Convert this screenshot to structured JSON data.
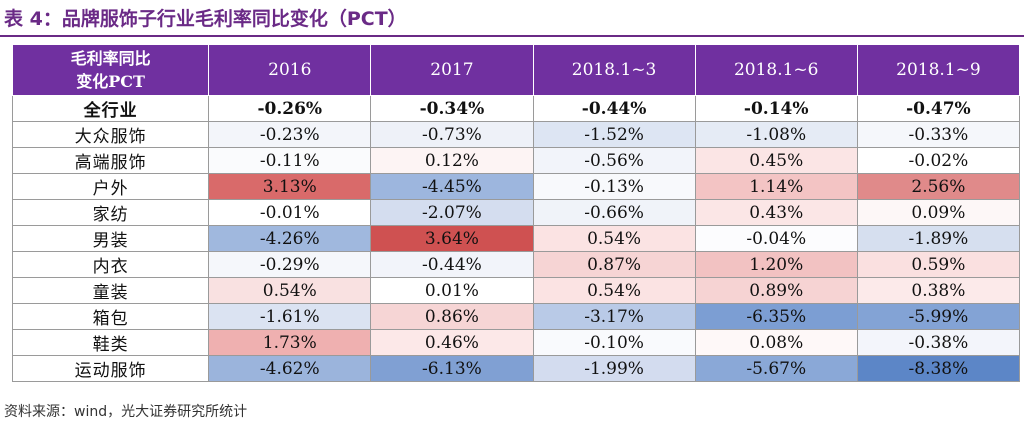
{
  "title": "表 4：品牌服饰子行业毛利率同比变化（PCT）",
  "header": {
    "corner_line1": "毛利率同比",
    "corner_line2": "变化PCT",
    "columns": [
      "2016",
      "2017",
      "2018.1~3",
      "2018.1~6",
      "2018.1~9"
    ]
  },
  "rows": [
    {
      "label": "全行业",
      "values": [
        "-0.26%",
        "-0.34%",
        "-0.44%",
        "-0.14%",
        "-0.47%"
      ],
      "colors": [
        "#ffffff",
        "#ffffff",
        "#ffffff",
        "#ffffff",
        "#ffffff"
      ]
    },
    {
      "label": "大众服饰",
      "values": [
        "-0.23%",
        "-0.73%",
        "-1.52%",
        "-1.08%",
        "-0.33%"
      ],
      "colors": [
        "#f3f5fa",
        "#eef1f8",
        "#dde5f3",
        "#e5ebf5",
        "#f5f7fb"
      ]
    },
    {
      "label": "高端服饰",
      "values": [
        "-0.11%",
        "0.12%",
        "-0.56%",
        "0.45%",
        "-0.02%"
      ],
      "colors": [
        "#fafbfd",
        "#fdf4f4",
        "#f2f4fa",
        "#fbe5e5",
        "#ffffff"
      ]
    },
    {
      "label": "户外",
      "values": [
        "3.13%",
        "-4.45%",
        "-0.13%",
        "1.14%",
        "2.56%"
      ],
      "colors": [
        "#d96a6a",
        "#9db6de",
        "#f8f9fc",
        "#f3c4c4",
        "#e08a8a"
      ]
    },
    {
      "label": "家纺",
      "values": [
        "-0.01%",
        "-2.07%",
        "-0.66%",
        "0.43%",
        "0.09%"
      ],
      "colors": [
        "#ffffff",
        "#d4ddef",
        "#f0f3f9",
        "#fbe6e6",
        "#fdf7f7"
      ]
    },
    {
      "label": "男装",
      "values": [
        "-4.26%",
        "3.64%",
        "0.54%",
        "-0.04%",
        "-1.89%"
      ],
      "colors": [
        "#a0b8de",
        "#cf5151",
        "#fbe3e3",
        "#fcfcfe",
        "#d6dfef"
      ]
    },
    {
      "label": "内衣",
      "values": [
        "-0.29%",
        "-0.44%",
        "0.87%",
        "1.20%",
        "0.59%"
      ],
      "colors": [
        "#f5f7fb",
        "#f2f4fa",
        "#f6d4d4",
        "#f2c2c2",
        "#fae0e0"
      ]
    },
    {
      "label": "童装",
      "values": [
        "0.54%",
        "0.01%",
        "0.54%",
        "0.89%",
        "0.38%"
      ],
      "colors": [
        "#f9e1e1",
        "#ffffff",
        "#fbe3e3",
        "#f6d3d3",
        "#fceaea"
      ]
    },
    {
      "label": "箱包",
      "values": [
        "-1.61%",
        "0.86%",
        "-3.17%",
        "-6.35%",
        "-5.99%"
      ],
      "colors": [
        "#dbe3f2",
        "#f6d5d5",
        "#b9cae7",
        "#7c9ed3",
        "#83a3d5"
      ]
    },
    {
      "label": "鞋类",
      "values": [
        "1.73%",
        "0.46%",
        "-0.10%",
        "0.08%",
        "-0.38%"
      ],
      "colors": [
        "#efb0b0",
        "#fce8e8",
        "#f9fafd",
        "#fef8f8",
        "#f3f5fb"
      ]
    },
    {
      "label": "运动服饰",
      "values": [
        "-4.62%",
        "-6.13%",
        "-1.99%",
        "-5.67%",
        "-8.38%"
      ],
      "colors": [
        "#9bb4dc",
        "#80a0d3",
        "#d3dcef",
        "#8aa8d7",
        "#5c86c7"
      ]
    }
  ],
  "source": "资料来源：wind，光大证券研究所统计"
}
